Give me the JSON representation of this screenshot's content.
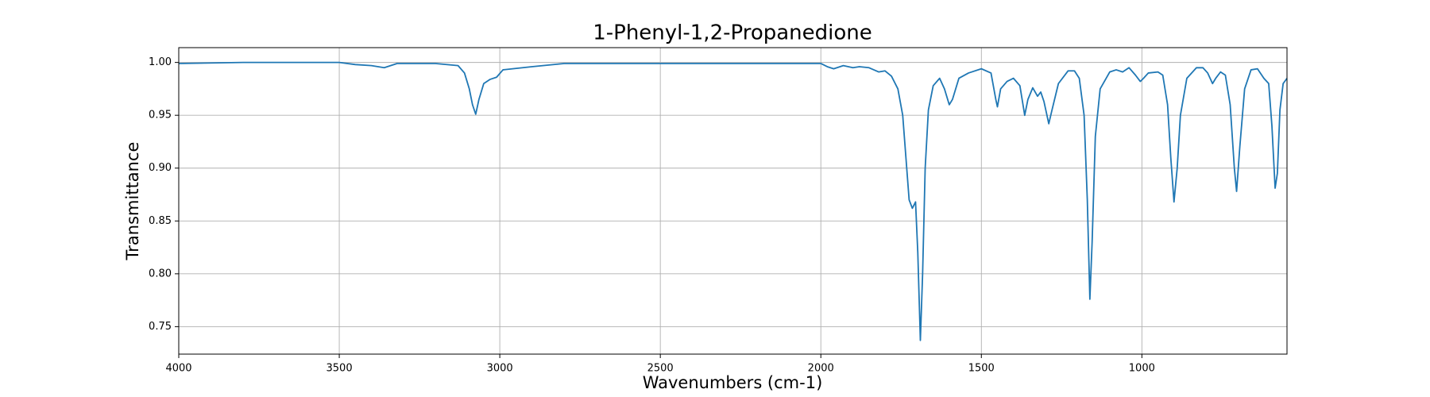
{
  "chart_data": {
    "type": "line",
    "title": "1-Phenyl-1,2-Propanedione",
    "x_label": "Wavenumbers (cm-1)",
    "y_label": "Transmittance",
    "x": [
      4000,
      3800,
      3500,
      3450,
      3400,
      3360,
      3320,
      3200,
      3130,
      3110,
      3095,
      3085,
      3075,
      3065,
      3050,
      3030,
      3010,
      2990,
      2960,
      2900,
      2800,
      2500,
      2000,
      1980,
      1960,
      1930,
      1900,
      1880,
      1850,
      1820,
      1800,
      1780,
      1760,
      1745,
      1735,
      1725,
      1715,
      1705,
      1698,
      1690,
      1683,
      1675,
      1665,
      1650,
      1630,
      1615,
      1600,
      1590,
      1570,
      1540,
      1500,
      1470,
      1455,
      1450,
      1440,
      1420,
      1400,
      1380,
      1365,
      1355,
      1340,
      1325,
      1315,
      1305,
      1290,
      1280,
      1260,
      1230,
      1210,
      1195,
      1180,
      1170,
      1162,
      1155,
      1145,
      1130,
      1100,
      1080,
      1060,
      1040,
      1020,
      1005,
      995,
      980,
      950,
      935,
      920,
      910,
      900,
      890,
      880,
      860,
      830,
      810,
      795,
      780,
      770,
      755,
      740,
      725,
      712,
      705,
      695,
      680,
      660,
      640,
      620,
      605,
      595,
      585,
      578,
      570,
      560,
      548
    ],
    "series": [
      {
        "color": "#1f77b4",
        "values": [
          0.999,
          1.0,
          1.0,
          0.998,
          0.997,
          0.995,
          0.999,
          0.999,
          0.997,
          0.99,
          0.975,
          0.96,
          0.951,
          0.965,
          0.98,
          0.984,
          0.986,
          0.993,
          0.994,
          0.996,
          0.999,
          0.999,
          0.999,
          0.996,
          0.994,
          0.997,
          0.995,
          0.996,
          0.995,
          0.991,
          0.992,
          0.987,
          0.975,
          0.95,
          0.91,
          0.87,
          0.862,
          0.868,
          0.82,
          0.737,
          0.8,
          0.9,
          0.955,
          0.978,
          0.985,
          0.975,
          0.96,
          0.965,
          0.985,
          0.99,
          0.994,
          0.99,
          0.965,
          0.958,
          0.975,
          0.982,
          0.985,
          0.978,
          0.95,
          0.965,
          0.976,
          0.968,
          0.972,
          0.963,
          0.942,
          0.955,
          0.98,
          0.992,
          0.992,
          0.985,
          0.95,
          0.87,
          0.776,
          0.83,
          0.93,
          0.975,
          0.991,
          0.993,
          0.991,
          0.995,
          0.988,
          0.982,
          0.985,
          0.99,
          0.991,
          0.988,
          0.96,
          0.91,
          0.868,
          0.9,
          0.95,
          0.985,
          0.995,
          0.995,
          0.99,
          0.98,
          0.985,
          0.991,
          0.988,
          0.96,
          0.9,
          0.878,
          0.92,
          0.975,
          0.993,
          0.994,
          0.985,
          0.98,
          0.94,
          0.881,
          0.895,
          0.955,
          0.98,
          0.985
        ]
      }
    ],
    "xlim": [
      4000,
      548
    ],
    "ylim": [
      0.724,
      1.014
    ],
    "xticks": [
      4000,
      3500,
      3000,
      2500,
      2000,
      1500,
      1000
    ],
    "yticks": [
      0.75,
      {
        "value": 0.8,
        "label": "0.80"
      },
      0.85,
      {
        "value": 0.9,
        "label": "0.90"
      },
      0.95,
      {
        "value": 1.0,
        "label": "1.00"
      }
    ],
    "grid": true
  }
}
